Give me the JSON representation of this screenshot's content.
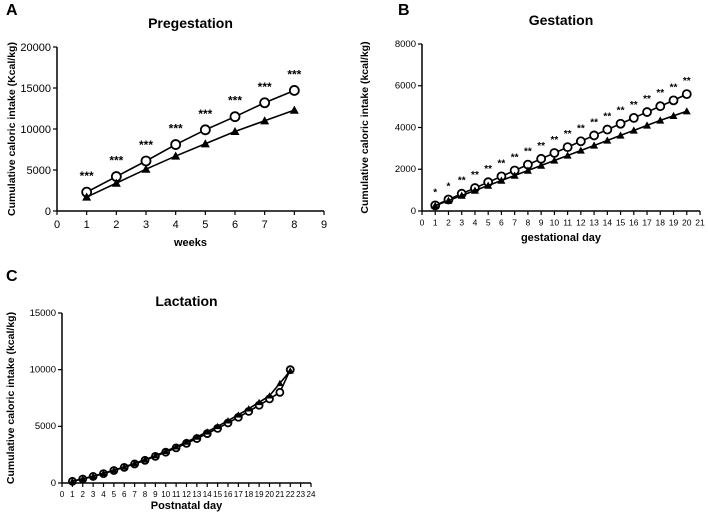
{
  "panels": [
    {
      "letter": "A"
    },
    {
      "letter": "B"
    },
    {
      "letter": "C"
    }
  ],
  "chart_data": [
    {
      "type": "line",
      "title": "Pregestation",
      "xlabel": "weeks",
      "ylabel": "Cumulative caloric intake (Kcal/kg)",
      "xlim": [
        0,
        9
      ],
      "ylim": [
        0,
        20000
      ],
      "x_ticks": [
        0,
        1,
        2,
        3,
        4,
        5,
        6,
        7,
        8,
        9
      ],
      "y_ticks": [
        0,
        5000,
        10000,
        15000,
        20000
      ],
      "x": [
        1,
        2,
        3,
        4,
        5,
        6,
        7,
        8
      ],
      "series": [
        {
          "marker": "circle-open",
          "values": [
            2300,
            4200,
            6100,
            8100,
            9900,
            11500,
            13200,
            14700
          ]
        },
        {
          "marker": "triangle",
          "values": [
            1700,
            3400,
            5100,
            6700,
            8200,
            9700,
            11000,
            12300
          ]
        }
      ],
      "annotations": [
        {
          "x": 1,
          "text": "***"
        },
        {
          "x": 2,
          "text": "***"
        },
        {
          "x": 3,
          "text": "***"
        },
        {
          "x": 4,
          "text": "***"
        },
        {
          "x": 5,
          "text": "***"
        },
        {
          "x": 6,
          "text": "***"
        },
        {
          "x": 7,
          "text": "***"
        },
        {
          "x": 8,
          "text": "***"
        }
      ],
      "grid": false
    },
    {
      "type": "line",
      "title": "Gestation",
      "xlabel": "gestational day",
      "ylabel": "Cumulative caloric intake (kcal/kg)",
      "xlim": [
        0,
        21
      ],
      "ylim": [
        0,
        8000
      ],
      "x_ticks": [
        0,
        1,
        2,
        3,
        4,
        5,
        6,
        7,
        8,
        9,
        10,
        11,
        12,
        13,
        14,
        15,
        16,
        17,
        18,
        19,
        20,
        21
      ],
      "y_ticks": [
        0,
        2000,
        4000,
        6000,
        8000
      ],
      "x": [
        1,
        2,
        3,
        4,
        5,
        6,
        7,
        8,
        9,
        10,
        11,
        12,
        13,
        14,
        15,
        16,
        17,
        18,
        19,
        20
      ],
      "series": [
        {
          "marker": "circle-open",
          "values": [
            270,
            550,
            830,
            1100,
            1380,
            1660,
            1940,
            2220,
            2500,
            2780,
            3060,
            3340,
            3620,
            3900,
            4180,
            4460,
            4740,
            5020,
            5300,
            5600
          ]
        },
        {
          "marker": "triangle",
          "values": [
            250,
            500,
            740,
            980,
            1220,
            1460,
            1700,
            1940,
            2180,
            2420,
            2660,
            2900,
            3140,
            3380,
            3620,
            3860,
            4100,
            4340,
            4560,
            4780
          ]
        }
      ],
      "annotations": [
        {
          "x": 1,
          "text": "*"
        },
        {
          "x": 2,
          "text": "*"
        },
        {
          "x": 3,
          "text": "**"
        },
        {
          "x": 4,
          "text": "**"
        },
        {
          "x": 5,
          "text": "**"
        },
        {
          "x": 6,
          "text": "**"
        },
        {
          "x": 7,
          "text": "**"
        },
        {
          "x": 8,
          "text": "**"
        },
        {
          "x": 9,
          "text": "**"
        },
        {
          "x": 10,
          "text": "**"
        },
        {
          "x": 11,
          "text": "**"
        },
        {
          "x": 12,
          "text": "**"
        },
        {
          "x": 13,
          "text": "**"
        },
        {
          "x": 14,
          "text": "**"
        },
        {
          "x": 15,
          "text": "**"
        },
        {
          "x": 16,
          "text": "**"
        },
        {
          "x": 17,
          "text": "**"
        },
        {
          "x": 18,
          "text": "**"
        },
        {
          "x": 19,
          "text": "**"
        },
        {
          "x": 20,
          "text": "**"
        }
      ],
      "grid": false
    },
    {
      "type": "line",
      "title": "Lactation",
      "xlabel": "Postnatal day",
      "ylabel": "Cumulative caloric intake (kcal/kg)",
      "xlim": [
        0,
        24
      ],
      "ylim": [
        0,
        15000
      ],
      "x_ticks": [
        0,
        1,
        2,
        3,
        4,
        5,
        6,
        7,
        8,
        9,
        10,
        11,
        12,
        13,
        14,
        15,
        16,
        17,
        18,
        19,
        20,
        21,
        22,
        23,
        24
      ],
      "y_ticks": [
        0,
        5000,
        10000,
        15000
      ],
      "x": [
        1,
        2,
        3,
        4,
        5,
        6,
        7,
        8,
        9,
        10,
        11,
        12,
        13,
        14,
        15,
        16,
        17,
        18,
        19,
        20,
        21,
        22
      ],
      "series": [
        {
          "marker": "circle-open",
          "values": [
            150,
            350,
            580,
            830,
            1100,
            1380,
            1680,
            2000,
            2350,
            2720,
            3100,
            3500,
            3920,
            4360,
            4820,
            5300,
            5800,
            6320,
            6860,
            7420,
            8000,
            10000
          ]
        },
        {
          "marker": "triangle",
          "values": [
            160,
            370,
            600,
            860,
            1130,
            1420,
            1730,
            2060,
            2420,
            2800,
            3200,
            3620,
            4060,
            4520,
            5000,
            5500,
            6020,
            6560,
            7120,
            7700,
            8800,
            9900
          ]
        }
      ],
      "grid": false
    }
  ]
}
